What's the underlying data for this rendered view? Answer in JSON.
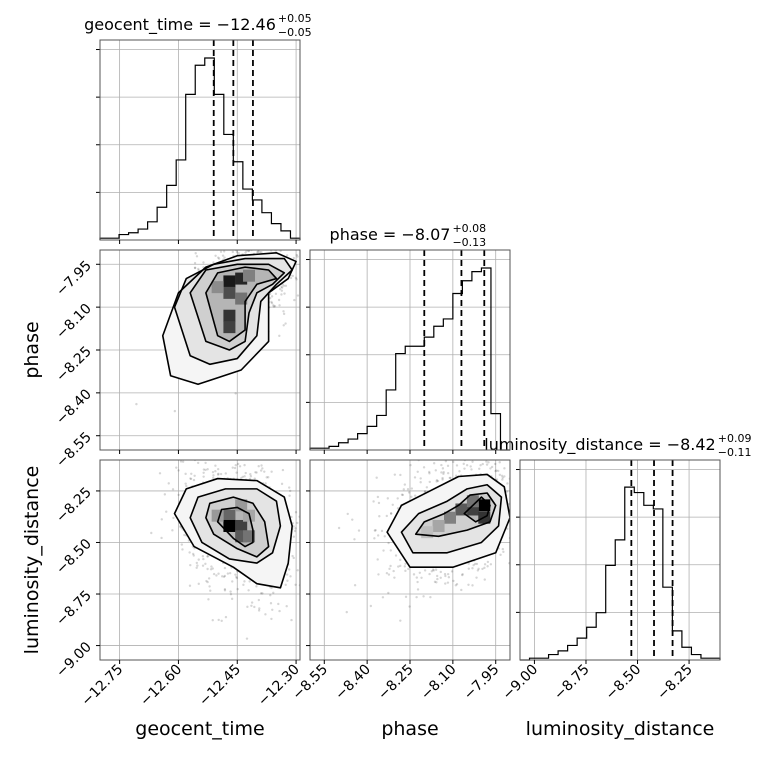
{
  "chart_data": {
    "type": "corner",
    "parameters": [
      {
        "key": "geocent_time",
        "label": "geocent_time",
        "title": "geocent_time = −12.46",
        "title_sup": "+0.05",
        "title_sub": "−0.05",
        "median": -12.46,
        "q16": -12.51,
        "q84": -12.41,
        "range": [
          -12.8,
          -12.29
        ],
        "ticks": [
          -12.75,
          -12.6,
          -12.45,
          -12.3
        ],
        "tick_labels": [
          "−12.75",
          "−12.60",
          "−12.45",
          "−12.30"
        ],
        "hist": [
          0.01,
          0.01,
          0.03,
          0.04,
          0.06,
          0.1,
          0.18,
          0.3,
          0.44,
          0.8,
          0.96,
          1.0,
          0.8,
          0.58,
          0.43,
          0.28,
          0.22,
          0.15,
          0.09,
          0.05,
          0.01
        ]
      },
      {
        "key": "phase",
        "label": "phase",
        "title": "phase = −8.07",
        "title_sup": "+0.08",
        "title_sub": "−0.13",
        "median": -8.07,
        "q16": -8.2,
        "q84": -7.99,
        "range": [
          -8.6,
          -7.9
        ],
        "ticks": [
          -8.55,
          -8.4,
          -8.25,
          -8.1,
          -7.95
        ],
        "tick_labels": [
          "−8.55",
          "−8.40",
          "−8.25",
          "−8.10",
          "−7.95"
        ],
        "hist": [
          0.01,
          0.01,
          0.02,
          0.04,
          0.06,
          0.09,
          0.13,
          0.19,
          0.33,
          0.53,
          0.57,
          0.57,
          0.62,
          0.68,
          0.72,
          0.86,
          0.93,
          0.98,
          1.0,
          0.2,
          0.0
        ]
      },
      {
        "key": "luminosity_distance",
        "label": "luminosity_distance",
        "title": "luminosity_distance = −8.42",
        "title_sup": "+0.09",
        "title_sub": "−0.11",
        "median": -8.42,
        "q16": -8.53,
        "q84": -8.33,
        "range": [
          -9.07,
          -8.1
        ],
        "ticks": [
          -9.0,
          -8.75,
          -8.5,
          -8.25
        ],
        "tick_labels": [
          "−9.00",
          "−8.75",
          "−8.50",
          "−8.25"
        ],
        "hist": [
          0.0,
          0.01,
          0.01,
          0.03,
          0.05,
          0.08,
          0.12,
          0.18,
          0.26,
          0.52,
          0.66,
          0.95,
          0.92,
          0.85,
          0.83,
          0.4,
          0.16,
          0.07,
          0.03,
          0.01,
          0.01
        ]
      }
    ],
    "pairs": [
      {
        "x": "geocent_time",
        "y": "phase",
        "mean": [
          -12.44,
          -8.03
        ],
        "sd": [
          0.05,
          0.08
        ],
        "corr": 0.45,
        "dense_cells": [
          [
            -12.47,
            -8.01,
            0.9
          ],
          [
            -12.44,
            -8.0,
            0.85
          ],
          [
            -12.47,
            -8.05,
            0.7
          ],
          [
            -12.44,
            -8.07,
            0.55
          ],
          [
            -12.42,
            -7.99,
            0.5
          ],
          [
            -12.47,
            -8.13,
            0.8
          ],
          [
            -12.47,
            -8.17,
            0.75
          ],
          [
            -12.5,
            -8.03,
            0.45
          ]
        ],
        "contours": [
          [
            [
              -12.5,
              -8.2
            ],
            [
              -12.53,
              -8.05
            ],
            [
              -12.5,
              -7.98
            ],
            [
              -12.43,
              -7.96
            ],
            [
              -12.37,
              -7.97
            ],
            [
              -12.35,
              -8.0
            ],
            [
              -12.4,
              -8.02
            ],
            [
              -12.43,
              -8.08
            ],
            [
              -12.43,
              -8.18
            ],
            [
              -12.47,
              -8.22
            ]
          ],
          [
            [
              -12.53,
              -8.22
            ],
            [
              -12.57,
              -8.05
            ],
            [
              -12.53,
              -7.97
            ],
            [
              -12.45,
              -7.95
            ],
            [
              -12.37,
              -7.95
            ],
            [
              -12.33,
              -7.98
            ],
            [
              -12.36,
              -8.02
            ],
            [
              -12.4,
              -8.05
            ],
            [
              -12.42,
              -8.12
            ],
            [
              -12.43,
              -8.22
            ],
            [
              -12.47,
              -8.25
            ]
          ],
          [
            [
              -12.57,
              -8.27
            ],
            [
              -12.61,
              -8.1
            ],
            [
              -12.58,
              -8.0
            ],
            [
              -12.51,
              -7.95
            ],
            [
              -12.43,
              -7.93
            ],
            [
              -12.33,
              -7.93
            ],
            [
              -12.31,
              -7.97
            ],
            [
              -12.35,
              -8.02
            ],
            [
              -12.39,
              -8.08
            ],
            [
              -12.4,
              -8.2
            ],
            [
              -12.45,
              -8.28
            ],
            [
              -12.52,
              -8.3
            ]
          ],
          [
            [
              -12.62,
              -8.34
            ],
            [
              -12.64,
              -8.2
            ],
            [
              -12.6,
              -8.05
            ],
            [
              -12.53,
              -7.96
            ],
            [
              -12.45,
              -7.92
            ],
            [
              -12.35,
              -7.91
            ],
            [
              -12.3,
              -7.94
            ],
            [
              -12.32,
              -8.0
            ],
            [
              -12.37,
              -8.05
            ],
            [
              -12.37,
              -8.22
            ],
            [
              -12.44,
              -8.32
            ],
            [
              -12.55,
              -8.37
            ]
          ]
        ]
      },
      {
        "x": "geocent_time",
        "y": "luminosity_distance",
        "mean": [
          -12.45,
          -8.42
        ],
        "sd": [
          0.06,
          0.14
        ],
        "corr": -0.3,
        "dense_cells": [
          [
            -12.47,
            -8.37,
            0.6
          ],
          [
            -12.47,
            -8.42,
            1.0
          ],
          [
            -12.44,
            -8.42,
            0.75
          ],
          [
            -12.44,
            -8.47,
            0.65
          ],
          [
            -12.42,
            -8.47,
            0.55
          ],
          [
            -12.44,
            -8.32,
            0.4
          ],
          [
            -12.5,
            -8.37,
            0.4
          ],
          [
            -12.42,
            -8.37,
            0.35
          ]
        ],
        "contours": [
          [
            [
              -12.5,
              -8.4
            ],
            [
              -12.49,
              -8.34
            ],
            [
              -12.45,
              -8.33
            ],
            [
              -12.42,
              -8.36
            ],
            [
              -12.41,
              -8.44
            ],
            [
              -12.41,
              -8.5
            ],
            [
              -12.43,
              -8.52
            ],
            [
              -12.46,
              -8.48
            ]
          ],
          [
            [
              -12.53,
              -8.38
            ],
            [
              -12.52,
              -8.31
            ],
            [
              -12.46,
              -8.28
            ],
            [
              -12.41,
              -8.31
            ],
            [
              -12.38,
              -8.4
            ],
            [
              -12.37,
              -8.52
            ],
            [
              -12.4,
              -8.57
            ],
            [
              -12.45,
              -8.53
            ],
            [
              -12.51,
              -8.46
            ]
          ],
          [
            [
              -12.57,
              -8.38
            ],
            [
              -12.55,
              -8.28
            ],
            [
              -12.48,
              -8.24
            ],
            [
              -12.4,
              -8.24
            ],
            [
              -12.35,
              -8.3
            ],
            [
              -12.34,
              -8.42
            ],
            [
              -12.36,
              -8.55
            ],
            [
              -12.4,
              -8.6
            ],
            [
              -12.47,
              -8.58
            ],
            [
              -12.54,
              -8.5
            ]
          ],
          [
            [
              -12.61,
              -8.36
            ],
            [
              -12.58,
              -8.24
            ],
            [
              -12.5,
              -8.19
            ],
            [
              -12.4,
              -8.2
            ],
            [
              -12.33,
              -8.28
            ],
            [
              -12.31,
              -8.42
            ],
            [
              -12.32,
              -8.6
            ],
            [
              -12.34,
              -8.72
            ],
            [
              -12.4,
              -8.7
            ],
            [
              -12.46,
              -8.62
            ],
            [
              -12.56,
              -8.52
            ]
          ]
        ]
      },
      {
        "x": "phase",
        "y": "luminosity_distance",
        "mean": [
          -8.1,
          -8.4
        ],
        "sd": [
          0.1,
          0.13
        ],
        "corr": 0.3,
        "dense_cells": [
          [
            -7.99,
            -8.32,
            1.0
          ],
          [
            -8.03,
            -8.34,
            0.75
          ],
          [
            -8.07,
            -8.34,
            0.65
          ],
          [
            -8.11,
            -8.38,
            0.5
          ],
          [
            -8.15,
            -8.42,
            0.35
          ],
          [
            -7.99,
            -8.38,
            0.8
          ],
          [
            -8.03,
            -8.3,
            0.55
          ],
          [
            -8.19,
            -8.45,
            0.25
          ]
        ],
        "contours": [
          [
            [
              -8.0,
              -8.28
            ],
            [
              -7.97,
              -8.32
            ],
            [
              -7.98,
              -8.37
            ],
            [
              -8.02,
              -8.4
            ],
            [
              -8.06,
              -8.36
            ]
          ],
          [
            [
              -8.08,
              -8.32
            ],
            [
              -8.04,
              -8.27
            ],
            [
              -7.98,
              -8.26
            ],
            [
              -7.95,
              -8.32
            ],
            [
              -7.97,
              -8.4
            ],
            [
              -8.05,
              -8.44
            ],
            [
              -8.15,
              -8.47
            ],
            [
              -8.23,
              -8.46
            ],
            [
              -8.2,
              -8.4
            ],
            [
              -8.13,
              -8.36
            ]
          ],
          [
            [
              -8.28,
              -8.45
            ],
            [
              -8.22,
              -8.36
            ],
            [
              -8.12,
              -8.3
            ],
            [
              -8.05,
              -8.24
            ],
            [
              -7.98,
              -8.22
            ],
            [
              -7.93,
              -8.28
            ],
            [
              -7.94,
              -8.42
            ],
            [
              -8.0,
              -8.5
            ],
            [
              -8.12,
              -8.55
            ],
            [
              -8.24,
              -8.55
            ]
          ],
          [
            [
              -8.33,
              -8.45
            ],
            [
              -8.28,
              -8.32
            ],
            [
              -8.18,
              -8.25
            ],
            [
              -8.08,
              -8.18
            ],
            [
              -7.98,
              -8.17
            ],
            [
              -7.92,
              -8.23
            ],
            [
              -7.9,
              -8.38
            ],
            [
              -7.95,
              -8.55
            ],
            [
              -8.1,
              -8.62
            ],
            [
              -8.25,
              -8.62
            ]
          ]
        ]
      }
    ]
  }
}
